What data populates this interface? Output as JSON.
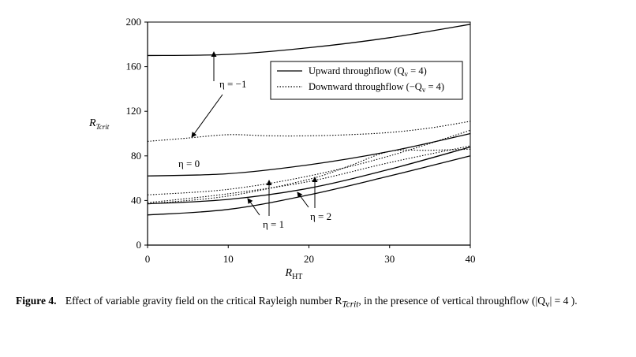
{
  "chart_data": {
    "type": "line",
    "xlabel": "R",
    "xlabel_sub": "HT",
    "ylabel": "R",
    "ylabel_sub": "Tcrit",
    "xlim": [
      0,
      40
    ],
    "ylim": [
      0,
      200
    ],
    "xticks": [
      0,
      10,
      20,
      30,
      40
    ],
    "yticks": [
      0,
      40,
      80,
      120,
      160,
      200
    ],
    "grid": false,
    "legend": {
      "placement": "top-right",
      "entries": [
        {
          "label": "Upward throughflow (Q",
          "label_sub": "v",
          "label_tail": " = 4)",
          "style": "solid"
        },
        {
          "label": "Downward throughflow (−Q",
          "label_sub": "v",
          "label_tail": " = 4)",
          "style": "dotted"
        }
      ]
    },
    "series": [
      {
        "name": "Upward throughflow (Qv = 4)",
        "eta": "−1",
        "style": "solid",
        "x": [
          0,
          10,
          20,
          30,
          40
        ],
        "y": [
          170,
          171,
          177,
          186,
          198
        ]
      },
      {
        "name": "Downward throughflow (−Qv = 4)",
        "eta": "−1",
        "style": "dotted",
        "x": [
          0,
          5,
          10,
          15,
          20,
          25,
          30,
          35,
          40
        ],
        "y": [
          93,
          96,
          99,
          98,
          98,
          99,
          101,
          105,
          111
        ]
      },
      {
        "name": "Upward throughflow (Qv = 4)",
        "eta": "0",
        "style": "solid",
        "x": [
          0,
          10,
          20,
          30,
          40
        ],
        "y": [
          62,
          64,
          72,
          84,
          100
        ]
      },
      {
        "name": "Downward throughflow (−Qv = 4)",
        "eta": "0",
        "style": "dotted",
        "x": [
          0,
          10,
          20,
          30,
          40
        ],
        "y": [
          45,
          50,
          62,
          80,
          103
        ]
      },
      {
        "name": "Upward throughflow (Qv = 4)",
        "eta": "1",
        "style": "solid",
        "x": [
          0,
          10,
          20,
          30,
          40
        ],
        "y": [
          37,
          41,
          51,
          68,
          88
        ]
      },
      {
        "name": "Downward throughflow (−Qv = 4)",
        "eta": "1",
        "style": "dotted",
        "x": [
          0,
          10,
          20,
          30,
          40
        ],
        "y": [
          38,
          46,
          57,
          74,
          89
        ]
      },
      {
        "name": "Upward throughflow (Qv = 4)",
        "eta": "2",
        "style": "solid",
        "x": [
          0,
          10,
          20,
          30,
          40
        ],
        "y": [
          27,
          32,
          45,
          62,
          80
        ]
      },
      {
        "name": "Downward throughflow (−Qv = 4)",
        "eta": "2",
        "style": "dotted",
        "x": [
          0,
          10,
          20,
          25,
          30,
          35,
          40
        ],
        "y": [
          37,
          44,
          59,
          71,
          84,
          85,
          86
        ]
      }
    ],
    "annotations": [
      {
        "text": "η = −1"
      },
      {
        "text": "η = 0"
      },
      {
        "text": "η = 1"
      },
      {
        "text": "η = 2"
      }
    ]
  },
  "caption": {
    "label": "Figure 4.",
    "text": "Effect of variable gravity field on the critical Rayleigh number R",
    "sym_sub": "Tcrit",
    "text2": ", in the presence of vertical throughflow (|Q",
    "q_sub": "v",
    "text3": "| = 4 )."
  }
}
